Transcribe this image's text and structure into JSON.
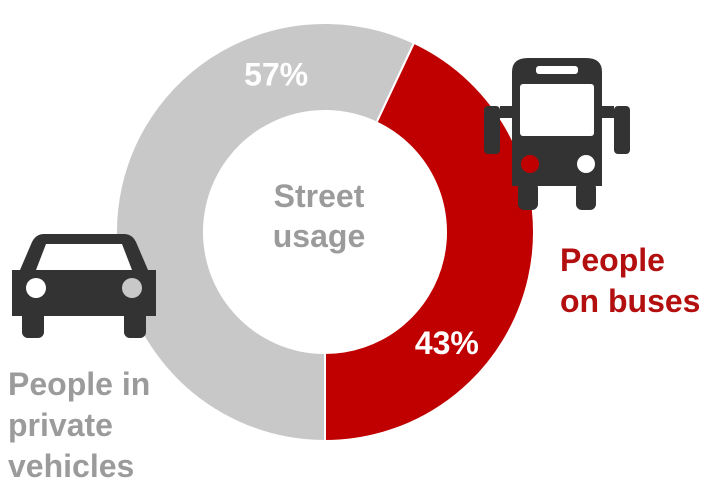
{
  "chart_data": {
    "type": "pie",
    "title": "Street usage",
    "slices": [
      {
        "label": "People in private vehicles",
        "value": 57,
        "display": "57%",
        "color": "#c8c8c8"
      },
      {
        "label": "People on buses",
        "value": 43,
        "display": "43%",
        "color": "#c00000"
      }
    ],
    "center_text": [
      "Street",
      "usage"
    ],
    "legend_private": [
      "People in",
      "private",
      "vehicles"
    ],
    "legend_bus": [
      "People",
      "on buses"
    ],
    "icons": [
      "car-icon",
      "bus-icon"
    ],
    "icon_color": "#333333",
    "label_text_color": "#ffffff",
    "center_text_color": "#9b9b9b"
  }
}
